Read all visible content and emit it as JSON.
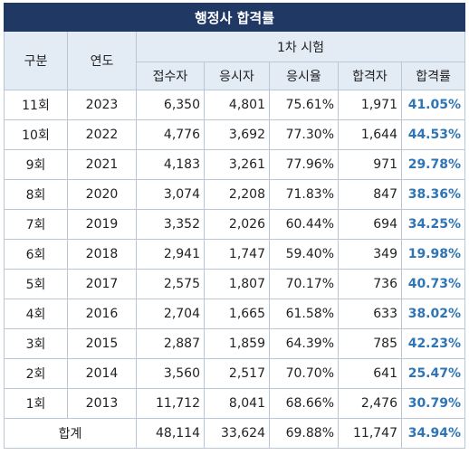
{
  "title": "행정사 합격률",
  "headers": {
    "category": "구분",
    "year": "연도",
    "group": "1차 시험",
    "applicants": "접수자",
    "examinees": "응시자",
    "exam_rate": "응시율",
    "passers": "합격자",
    "pass_rate": "합격률"
  },
  "rows": [
    {
      "round": "11회",
      "year": "2023",
      "applicants": "6,350",
      "examinees": "4,801",
      "exam_rate": "75.61%",
      "passers": "1,971",
      "pass_rate": "41.05%"
    },
    {
      "round": "10회",
      "year": "2022",
      "applicants": "4,776",
      "examinees": "3,692",
      "exam_rate": "77.30%",
      "passers": "1,644",
      "pass_rate": "44.53%"
    },
    {
      "round": "9회",
      "year": "2021",
      "applicants": "4,183",
      "examinees": "3,261",
      "exam_rate": "77.96%",
      "passers": "971",
      "pass_rate": "29.78%"
    },
    {
      "round": "8회",
      "year": "2020",
      "applicants": "3,074",
      "examinees": "2,208",
      "exam_rate": "71.83%",
      "passers": "847",
      "pass_rate": "38.36%"
    },
    {
      "round": "7회",
      "year": "2019",
      "applicants": "3,352",
      "examinees": "2,026",
      "exam_rate": "60.44%",
      "passers": "694",
      "pass_rate": "34.25%"
    },
    {
      "round": "6회",
      "year": "2018",
      "applicants": "2,941",
      "examinees": "1,747",
      "exam_rate": "59.40%",
      "passers": "349",
      "pass_rate": "19.98%"
    },
    {
      "round": "5회",
      "year": "2017",
      "applicants": "2,575",
      "examinees": "1,807",
      "exam_rate": "70.17%",
      "passers": "736",
      "pass_rate": "40.73%"
    },
    {
      "round": "4회",
      "year": "2016",
      "applicants": "2,704",
      "examinees": "1,665",
      "exam_rate": "61.58%",
      "passers": "633",
      "pass_rate": "38.02%"
    },
    {
      "round": "3회",
      "year": "2015",
      "applicants": "2,887",
      "examinees": "1,859",
      "exam_rate": "64.39%",
      "passers": "785",
      "pass_rate": "42.23%"
    },
    {
      "round": "2회",
      "year": "2014",
      "applicants": "3,560",
      "examinees": "2,517",
      "exam_rate": "70.70%",
      "passers": "641",
      "pass_rate": "25.47%"
    },
    {
      "round": "1회",
      "year": "2013",
      "applicants": "11,712",
      "examinees": "8,041",
      "exam_rate": "68.66%",
      "passers": "2,476",
      "pass_rate": "30.79%"
    }
  ],
  "total": {
    "label": "합계",
    "applicants": "48,114",
    "examinees": "33,624",
    "exam_rate": "69.88%",
    "passers": "11,747",
    "pass_rate": "34.94%"
  },
  "colors": {
    "title_bg": "#1f3864",
    "header_bg": "#e3ebf5",
    "rate_text": "#2e75b6",
    "border": "#b8c6d6"
  }
}
